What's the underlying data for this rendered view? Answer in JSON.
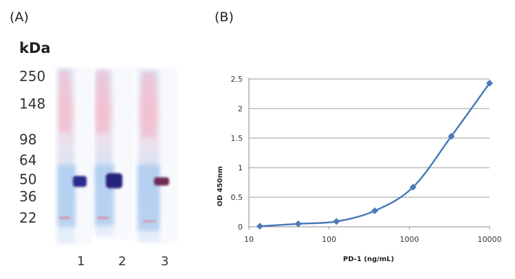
{
  "panel_labels": {
    "a": "(A)",
    "b": "(B)"
  },
  "blot": {
    "unit_label": "kDa",
    "markers": [
      "250",
      "148",
      "98",
      "64",
      "50",
      "36",
      "22"
    ],
    "lanes": [
      "1",
      "2",
      "3"
    ]
  },
  "chart_data": {
    "type": "line",
    "xlabel": "PD-1 (ng/mL)",
    "ylabel": "OD 450nm",
    "x_scale": "log",
    "xlim": [
      10,
      10000
    ],
    "ylim": [
      0,
      2.5
    ],
    "x_ticks": [
      "10",
      "100",
      "1000",
      "10000"
    ],
    "y_ticks": [
      "0",
      "0.5",
      "1",
      "1.5",
      "2",
      "2.5"
    ],
    "grid": "horizontal",
    "series": [
      {
        "color": "#4a7ab8",
        "marker": "diamond",
        "x": [
          13.7,
          41.2,
          123.5,
          370.4,
          1111,
          3333,
          10000
        ],
        "y": [
          0.01,
          0.05,
          0.09,
          0.27,
          0.67,
          1.53,
          2.43
        ]
      }
    ]
  }
}
